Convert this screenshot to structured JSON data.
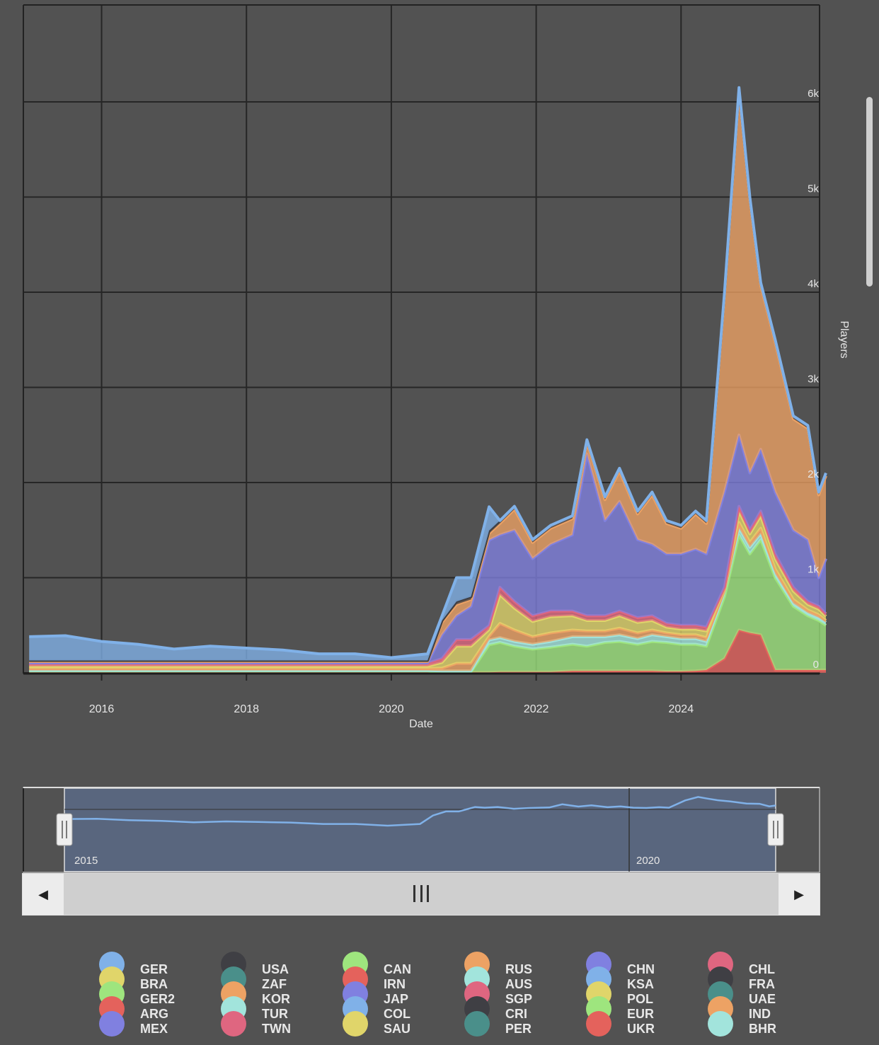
{
  "chart_data": {
    "type": "area",
    "stacked": true,
    "xlabel": "Date",
    "ylabel": "Players",
    "xlim": [
      2014.92,
      2026.0
    ],
    "ylim": [
      0,
      7000
    ],
    "x_ticks": [
      2016,
      2018,
      2020,
      2022,
      2024
    ],
    "x_tick_labels": [
      "2016",
      "2018",
      "2020",
      "2022",
      "2024"
    ],
    "y_ticks": [
      0,
      1000,
      2000,
      3000,
      4000,
      5000,
      6000
    ],
    "y_tick_labels": [
      "0",
      "1k",
      "2k",
      "3k",
      "4k",
      "5k",
      "6k"
    ],
    "grid": true,
    "x": [
      2015.0,
      2015.5,
      2016.0,
      2016.5,
      2017.0,
      2017.5,
      2018.0,
      2018.5,
      2019.0,
      2019.5,
      2020.0,
      2020.5,
      2020.7,
      2020.9,
      2021.1,
      2021.35,
      2021.5,
      2021.7,
      2021.95,
      2022.2,
      2022.5,
      2022.7,
      2022.95,
      2023.15,
      2023.4,
      2023.6,
      2023.8,
      2024.0,
      2024.2,
      2024.35,
      2024.6,
      2024.8,
      2024.95,
      2025.1,
      2025.3,
      2025.55,
      2025.75,
      2025.9,
      2026.0
    ],
    "series": [
      {
        "name": "ARG",
        "color": "#e4625c",
        "values": [
          10,
          10,
          10,
          10,
          10,
          10,
          10,
          10,
          10,
          10,
          10,
          10,
          5,
          5,
          5,
          5,
          10,
          10,
          10,
          10,
          20,
          20,
          20,
          20,
          20,
          20,
          15,
          15,
          20,
          30,
          150,
          450,
          420,
          400,
          30,
          30,
          30,
          30,
          30
        ]
      },
      {
        "name": "GER2",
        "color": "#9ee57e",
        "values": [
          10,
          10,
          10,
          10,
          10,
          10,
          10,
          10,
          10,
          10,
          10,
          10,
          5,
          5,
          5,
          290,
          310,
          270,
          240,
          260,
          280,
          260,
          300,
          310,
          280,
          310,
          305,
          285,
          280,
          250,
          650,
          1000,
          830,
          1000,
          970,
          670,
          570,
          520,
          470
        ]
      },
      {
        "name": "TUR",
        "color": "#a2e4dc",
        "values": [
          5,
          5,
          5,
          5,
          5,
          5,
          5,
          5,
          5,
          5,
          5,
          5,
          10,
          10,
          10,
          50,
          50,
          50,
          50,
          60,
          80,
          100,
          60,
          70,
          60,
          70,
          60,
          60,
          60,
          50,
          60,
          70,
          70,
          60,
          40,
          30,
          30,
          30,
          30
        ]
      },
      {
        "name": "KOR",
        "color": "#eda264",
        "values": [
          20,
          20,
          20,
          20,
          20,
          20,
          20,
          20,
          20,
          20,
          20,
          20,
          30,
          80,
          80,
          40,
          150,
          120,
          80,
          90,
          70,
          60,
          60,
          70,
          60,
          50,
          40,
          40,
          40,
          40,
          10,
          60,
          50,
          60,
          50,
          40,
          30,
          30,
          20
        ]
      },
      {
        "name": "BRA",
        "color": "#e0d56a",
        "values": [
          25,
          25,
          25,
          25,
          25,
          25,
          25,
          25,
          25,
          25,
          25,
          25,
          60,
          180,
          180,
          70,
          300,
          230,
          160,
          170,
          150,
          110,
          110,
          130,
          110,
          100,
          60,
          60,
          60,
          70,
          20,
          120,
          90,
          130,
          110,
          90,
          60,
          60,
          45
        ]
      },
      {
        "name": "TWN",
        "color": "#df6680",
        "values": [
          30,
          30,
          30,
          30,
          30,
          30,
          30,
          30,
          30,
          30,
          30,
          30,
          40,
          70,
          70,
          40,
          80,
          70,
          60,
          60,
          50,
          50,
          50,
          50,
          50,
          50,
          40,
          40,
          40,
          40,
          10,
          50,
          40,
          50,
          50,
          40,
          30,
          30,
          25
        ]
      },
      {
        "name": "MEX",
        "color": "#8080e0",
        "values": [
          5,
          5,
          5,
          5,
          5,
          5,
          5,
          5,
          5,
          5,
          5,
          5,
          250,
          250,
          350,
          900,
          550,
          750,
          600,
          700,
          800,
          1700,
          1000,
          1150,
          820,
          750,
          730,
          750,
          800,
          770,
          1000,
          750,
          600,
          650,
          650,
          600,
          650,
          300,
          580
        ]
      },
      {
        "name": "RUS",
        "color": "#eda264",
        "values": [
          15,
          15,
          15,
          15,
          15,
          15,
          15,
          15,
          15,
          15,
          15,
          15,
          130,
          120,
          70,
          70,
          120,
          220,
          170,
          170,
          170,
          120,
          220,
          320,
          270,
          520,
          320,
          270,
          370,
          320,
          2070,
          3620,
          2870,
          1720,
          1570,
          1170,
          1170,
          870,
          870
        ]
      },
      {
        "name": "USA",
        "color": "#3f3f44",
        "values": [
          10,
          10,
          10,
          10,
          10,
          10,
          10,
          10,
          10,
          10,
          10,
          10,
          20,
          30,
          30,
          30,
          30,
          30,
          30,
          30,
          30,
          30,
          30,
          30,
          30,
          30,
          30,
          30,
          30,
          30,
          30,
          30,
          30,
          30,
          30,
          30,
          30,
          30,
          30
        ]
      },
      {
        "name": "GER",
        "color": "#80b1e8",
        "values": [
          250,
          260,
          200,
          170,
          120,
          150,
          130,
          110,
          70,
          70,
          30,
          70,
          50,
          250,
          200,
          250,
          0,
          0,
          0,
          0,
          0,
          0,
          0,
          0,
          0,
          0,
          0,
          0,
          0,
          0,
          0,
          0,
          0,
          0,
          0,
          0,
          0,
          0,
          0
        ]
      }
    ],
    "range_slider": {
      "labels": [
        "2015",
        "2020"
      ],
      "selected_fraction": [
        0.052,
        0.945
      ]
    },
    "legend": {
      "placement": "bottom",
      "columns": [
        [
          {
            "name": "GER",
            "color": "#80b1e8"
          },
          {
            "name": "BRA",
            "color": "#e0d56a"
          },
          {
            "name": "GER2",
            "color": "#9ee57e"
          },
          {
            "name": "ARG",
            "color": "#e4625c"
          },
          {
            "name": "MEX",
            "color": "#8080e0"
          }
        ],
        [
          {
            "name": "USA",
            "color": "#3f3f44"
          },
          {
            "name": "ZAF",
            "color": "#4a8f8a"
          },
          {
            "name": "KOR",
            "color": "#eda264"
          },
          {
            "name": "TUR",
            "color": "#a2e4dc"
          },
          {
            "name": "TWN",
            "color": "#df6680"
          }
        ],
        [
          {
            "name": "CAN",
            "color": "#9ee57e"
          },
          {
            "name": "IRN",
            "color": "#e4625c"
          },
          {
            "name": "JAP",
            "color": "#8080e0"
          },
          {
            "name": "COL",
            "color": "#80b1e8"
          },
          {
            "name": "SAU",
            "color": "#e0d56a"
          }
        ],
        [
          {
            "name": "RUS",
            "color": "#eda264"
          },
          {
            "name": "AUS",
            "color": "#a2e4dc"
          },
          {
            "name": "SGP",
            "color": "#df6680"
          },
          {
            "name": "CRI",
            "color": "#3f3f44"
          },
          {
            "name": "PER",
            "color": "#4a8f8a"
          }
        ],
        [
          {
            "name": "CHN",
            "color": "#8080e0"
          },
          {
            "name": "KSA",
            "color": "#80b1e8"
          },
          {
            "name": "POL",
            "color": "#e0d56a"
          },
          {
            "name": "EUR",
            "color": "#9ee57e"
          },
          {
            "name": "UKR",
            "color": "#e4625c"
          }
        ],
        [
          {
            "name": "CHL",
            "color": "#df6680"
          },
          {
            "name": "FRA",
            "color": "#3f3f44"
          },
          {
            "name": "UAE",
            "color": "#4a8f8a"
          },
          {
            "name": "IND",
            "color": "#eda264"
          },
          {
            "name": "BHR",
            "color": "#a2e4dc"
          }
        ]
      ]
    }
  }
}
